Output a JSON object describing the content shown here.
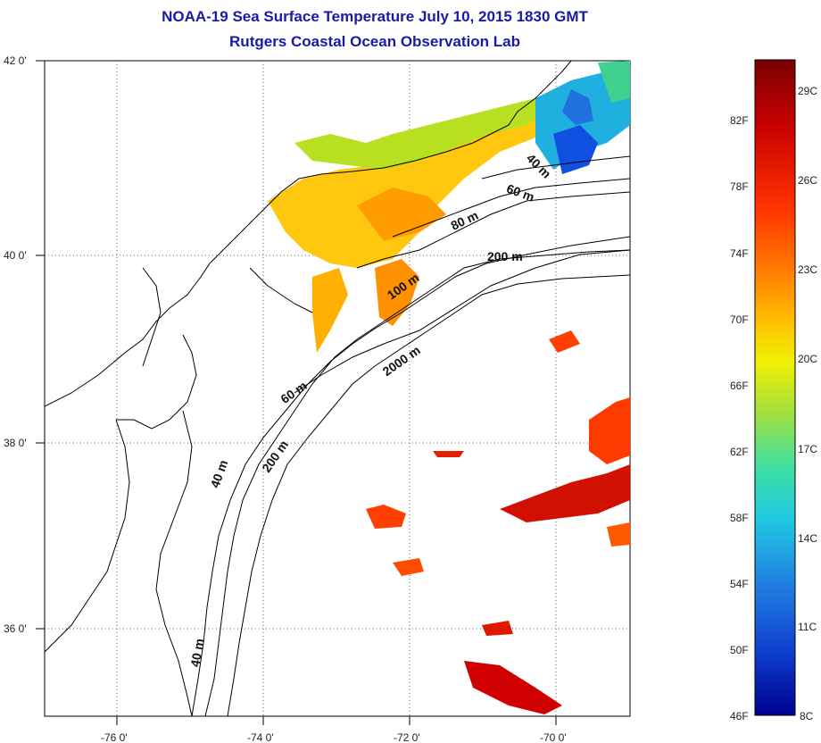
{
  "title": {
    "line1": "NOAA-19 Sea Surface Temperature July 10, 2015 1830 GMT",
    "line2": "Rutgers Coastal Ocean Observation Lab"
  },
  "axes": {
    "lat_labels": [
      "42 0'",
      "40 0'",
      "38 0'",
      "36 0'"
    ],
    "lon_labels": [
      "-76 0'",
      "-74 0'",
      "-72 0'",
      "-70 0'"
    ]
  },
  "contour_labels": [
    "40 m",
    "60 m",
    "80 m",
    "200 m",
    "100 m",
    "2000 m",
    "60 m",
    "200 m",
    "40 m",
    "40 m"
  ],
  "colorbar": {
    "fahrenheit": [
      "82F",
      "78F",
      "74F",
      "70F",
      "66F",
      "62F",
      "58F",
      "54F",
      "50F",
      "46F"
    ],
    "celsius": [
      "29C",
      "26C",
      "23C",
      "20C",
      "17C",
      "14C",
      "11C",
      "8C"
    ],
    "colors": [
      "#7a0000",
      "#c80000",
      "#ff3000",
      "#ff7a00",
      "#ffc000",
      "#f0f000",
      "#a0e040",
      "#40e0a0",
      "#20c8e0",
      "#2080e0",
      "#1040d0",
      "#000090"
    ]
  }
}
